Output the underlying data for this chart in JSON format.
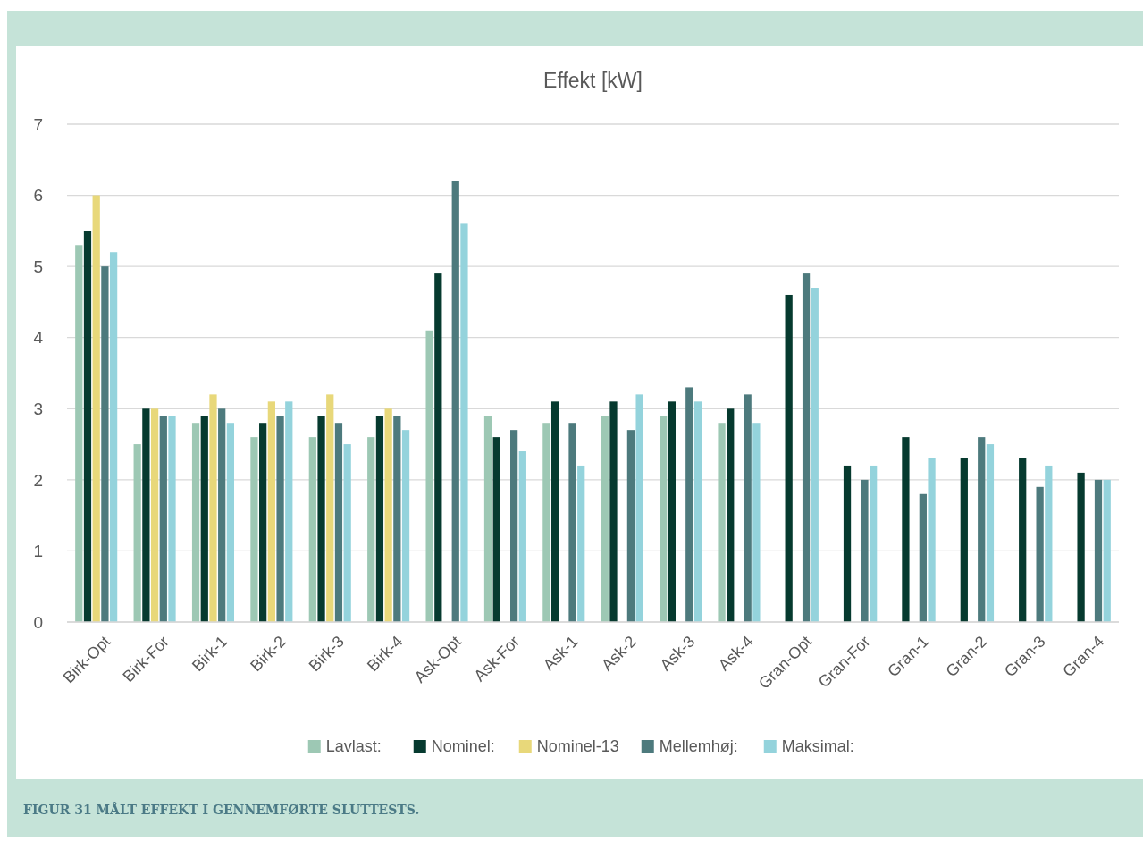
{
  "chart_data": {
    "type": "bar",
    "title": "Effekt [kW]",
    "categories": [
      "Birk-Opt",
      "Birk-For",
      "Birk-1",
      "Birk-2",
      "Birk-3",
      "Birk-4",
      "Ask-Opt",
      "Ask-For",
      "Ask-1",
      "Ask-2",
      "Ask-3",
      "Ask-4",
      "Gran-Opt",
      "Gran-For",
      "Gran-1",
      "Gran-2",
      "Gran-3",
      "Gran-4"
    ],
    "series": [
      {
        "name": "Lavlast:",
        "color": "#9dc8b4",
        "values": [
          5.3,
          2.5,
          2.8,
          2.6,
          2.6,
          2.6,
          4.1,
          2.9,
          2.8,
          2.9,
          2.9,
          2.8,
          null,
          null,
          null,
          null,
          null,
          null
        ]
      },
      {
        "name": "Nominel:",
        "color": "#063a2f",
        "values": [
          5.5,
          3.0,
          2.9,
          2.8,
          2.9,
          2.9,
          4.9,
          2.6,
          3.1,
          3.1,
          3.1,
          3.0,
          4.6,
          2.2,
          2.6,
          2.3,
          2.3,
          2.1
        ]
      },
      {
        "name": "Nominel-13",
        "color": "#e8d87a",
        "values": [
          6.0,
          3.0,
          3.2,
          3.1,
          3.2,
          3.0,
          null,
          null,
          null,
          null,
          null,
          null,
          null,
          null,
          null,
          null,
          null,
          null
        ]
      },
      {
        "name": "Mellemhøj:",
        "color": "#4d7a7d",
        "values": [
          5.0,
          2.9,
          3.0,
          2.9,
          2.8,
          2.9,
          6.2,
          2.7,
          2.8,
          2.7,
          3.3,
          3.2,
          4.9,
          2.0,
          1.8,
          2.6,
          1.9,
          2.0
        ]
      },
      {
        "name": "Maksimal:",
        "color": "#94d3dc",
        "values": [
          5.2,
          2.9,
          2.8,
          3.1,
          2.5,
          2.7,
          5.6,
          2.4,
          2.2,
          3.2,
          3.1,
          2.8,
          4.7,
          2.2,
          2.3,
          2.5,
          2.2,
          2.0
        ]
      }
    ],
    "ylim": [
      0,
      7
    ],
    "yticks": [
      0,
      1,
      2,
      3,
      4,
      5,
      6,
      7
    ],
    "grid": "y",
    "legend": "bottom",
    "annotations": [
      "FIGUR 31 MÅLT EFFEKT I GENNEMFØRTE SLUTTESTS."
    ]
  }
}
